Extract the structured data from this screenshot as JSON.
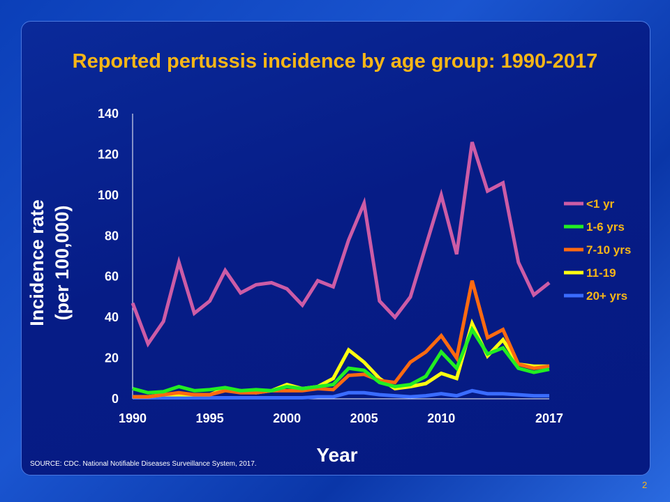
{
  "slide": {
    "title": "Reported pertussis incidence by age group: 1990-2017",
    "source": "SOURCE:  CDC. National Notifiable Diseases Surveillance System, 2017.",
    "page_number": "2"
  },
  "chart_data": {
    "type": "line",
    "title": "Reported pertussis incidence by age group: 1990-2017",
    "xlabel": "Year",
    "ylabel_line1": "Incidence rate",
    "ylabel_line2": "(per 100,000)",
    "ylim": [
      0,
      140
    ],
    "xlim": [
      1990,
      2017
    ],
    "y_ticks": [
      "0",
      "20",
      "40",
      "60",
      "80",
      "100",
      "120",
      "140"
    ],
    "x_ticks": [
      "1990",
      "1995",
      "2000",
      "2005",
      "2010",
      "2017"
    ],
    "legend_placement": "right",
    "x": [
      1990,
      1991,
      1992,
      1993,
      1994,
      1995,
      1996,
      1997,
      1998,
      1999,
      2000,
      2001,
      2002,
      2003,
      2004,
      2005,
      2006,
      2007,
      2008,
      2009,
      2010,
      2011,
      2012,
      2013,
      2014,
      2015,
      2016,
      2017
    ],
    "series": [
      {
        "name": "<1 yr",
        "color": "#cc5ca6",
        "values": [
          47,
          27,
          38,
          67,
          42,
          48,
          63,
          52,
          56,
          57,
          54,
          46,
          58,
          55,
          78,
          96,
          48,
          40,
          50,
          75,
          100,
          71,
          126,
          102,
          106,
          67,
          51,
          57
        ]
      },
      {
        "name": "1-6 yrs",
        "color": "#22ee22",
        "values": [
          5,
          3,
          3.5,
          6,
          4,
          4.5,
          5.5,
          4,
          4.5,
          4,
          6,
          5,
          6,
          7,
          15,
          14,
          8,
          6,
          7,
          11,
          23,
          15,
          34,
          22,
          25,
          15,
          13,
          14.5
        ]
      },
      {
        "name": "7-10 yrs",
        "color": "#ff6a10",
        "values": [
          1,
          1,
          2,
          3,
          2,
          2,
          4,
          3,
          3,
          4,
          4,
          4,
          5,
          4.5,
          11.5,
          12,
          9,
          8,
          18,
          23,
          31,
          20,
          58,
          30,
          34,
          17,
          15,
          16
        ]
      },
      {
        "name": "11-19",
        "color": "#ffff10",
        "values": [
          1,
          1,
          2,
          2,
          2,
          2,
          5,
          4,
          3,
          4,
          7,
          5,
          6,
          10,
          24,
          18,
          10,
          5,
          6,
          7.5,
          12.5,
          10,
          37,
          21,
          29,
          17,
          16,
          16
        ]
      },
      {
        "name": "20+ yrs",
        "color": "#3a6cff",
        "values": [
          0.5,
          0.5,
          0.5,
          0.5,
          0.5,
          0.5,
          0.5,
          0.5,
          0.5,
          0.5,
          0.5,
          0.5,
          1,
          1,
          3,
          3,
          2,
          1.5,
          1,
          1.5,
          2.5,
          1.5,
          4,
          2.5,
          2.5,
          2,
          1.5,
          1.5
        ]
      }
    ]
  }
}
